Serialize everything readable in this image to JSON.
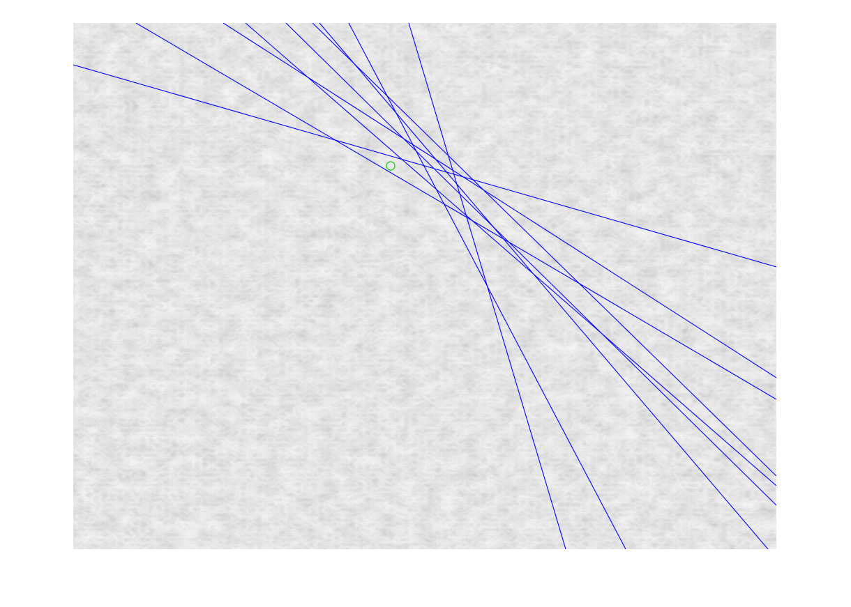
{
  "image": {
    "subject": "grayscale-textured-surface",
    "background_color": "#ffffff",
    "texture_base_color": "#ececec",
    "texture_light_color": "#fafafa",
    "texture_dark_color": "#bdbdbd"
  },
  "overlay": {
    "line_color": "#0000ff",
    "line_count": 9,
    "marker_color": "#00cc00",
    "marker_shape": "circle"
  }
}
